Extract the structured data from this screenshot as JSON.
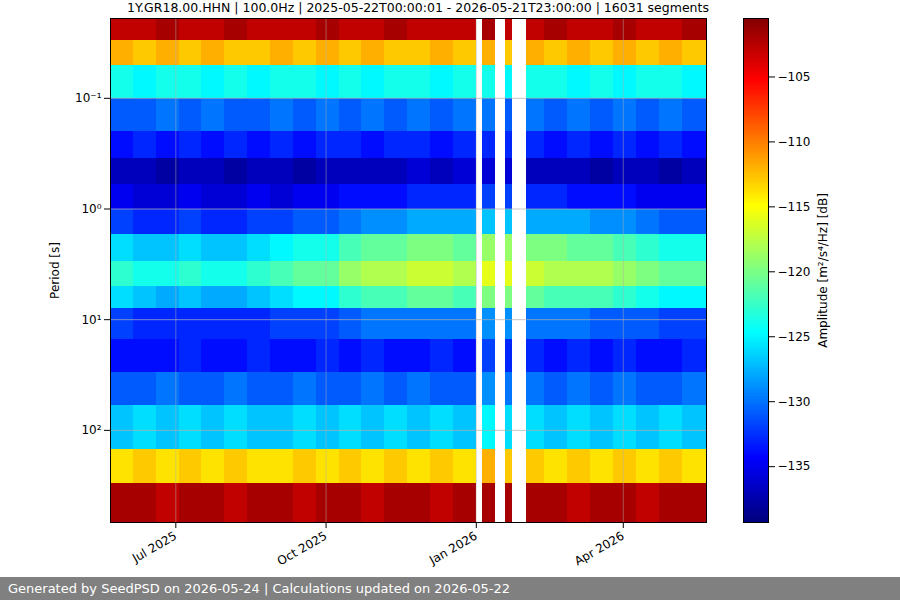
{
  "chart_data": {
    "type": "heatmap",
    "title": "1Y.GR18.00.HHN | 100.0Hz | 2025-05-22T00:00:01 - 2026-05-21T23:00:00 | 16031 segments",
    "footer": "Generated by SeedPSD on 2026-05-24 | Calculations updated on 2026-05-22",
    "y_label": "Period [s]",
    "colorbar_label": "Amplitude [m²/s⁴/Hz] [dB]",
    "xlim": [
      "2025-05-22T00:00:01",
      "2026-05-21T23:00:00"
    ],
    "xticks": [
      {
        "value": "2025-07-01",
        "label": "Jul 2025"
      },
      {
        "value": "2025-10-01",
        "label": "Oct 2025"
      },
      {
        "value": "2026-01-01",
        "label": "Jan 2026"
      },
      {
        "value": "2026-04-01",
        "label": "Apr 2026"
      }
    ],
    "ylim": [
      0.019,
      680
    ],
    "yticks": [
      {
        "value": 0.1,
        "label": "10⁻¹"
      },
      {
        "value": 1,
        "label": "10⁰"
      },
      {
        "value": 10,
        "label": "10¹"
      },
      {
        "value": 100,
        "label": "10²"
      }
    ],
    "log": "y",
    "grid": true,
    "time_edges": [
      "2025-05-22T00:00:01",
      "2025-06-05",
      "2025-06-19",
      "2025-07-03",
      "2025-07-17",
      "2025-07-31",
      "2025-08-14",
      "2025-08-28",
      "2025-09-11",
      "2025-09-25",
      "2025-10-09",
      "2025-10-23",
      "2025-11-06",
      "2025-11-20",
      "2025-12-04",
      "2025-12-18",
      "2026-01-01",
      "2026-01-05",
      "2026-01-13",
      "2026-01-19",
      "2026-01-23",
      "2026-02-01",
      "2026-02-12",
      "2026-02-26",
      "2026-03-12",
      "2026-03-26",
      "2026-04-09",
      "2026-04-23",
      "2026-05-07",
      "2026-05-21T23:00:00"
    ],
    "period_edges": [
      0.019,
      0.03,
      0.05,
      0.1,
      0.2,
      0.35,
      0.6,
      1,
      1.7,
      3,
      5,
      8,
      15,
      30,
      60,
      150,
      300,
      680
    ],
    "values": [
      [
        -103,
        -103,
        -102,
        -103,
        -103,
        -102,
        -103,
        -103,
        -103,
        -102,
        -103,
        -103,
        -102,
        -103,
        -103,
        -103,
        null,
        -102,
        null,
        -103,
        null,
        -103,
        -102,
        -103,
        -103,
        -102,
        -103,
        -103,
        -102
      ],
      [
        -112,
        -113,
        -112,
        -113,
        -112,
        -113,
        -113,
        -112,
        -113,
        -112,
        -113,
        -112,
        -113,
        -113,
        -112,
        -113,
        null,
        -112,
        null,
        -113,
        null,
        -112,
        -113,
        -112,
        -113,
        -112,
        -113,
        -112,
        -113
      ],
      [
        -124,
        -125,
        -124,
        -124,
        -125,
        -124,
        -125,
        -124,
        -124,
        -125,
        -124,
        -125,
        -124,
        -124,
        -125,
        -124,
        null,
        -124,
        null,
        -125,
        null,
        -124,
        -124,
        -125,
        -124,
        -125,
        -124,
        -124,
        -125
      ],
      [
        -131,
        -131,
        -130,
        -131,
        -130,
        -131,
        -131,
        -130,
        -131,
        -130,
        -131,
        -130,
        -131,
        -130,
        -131,
        -130,
        null,
        -130,
        null,
        -131,
        null,
        -130,
        -131,
        -130,
        -131,
        -130,
        -131,
        -130,
        -131
      ],
      [
        -134,
        -133,
        -134,
        -133,
        -134,
        -133,
        -134,
        -133,
        -134,
        -133,
        -133,
        -134,
        -133,
        -133,
        -134,
        -133,
        null,
        -133,
        null,
        -133,
        null,
        -133,
        -134,
        -133,
        -134,
        -133,
        -134,
        -133,
        -134
      ],
      [
        -137,
        -137,
        -138,
        -137,
        -137,
        -138,
        -137,
        -137,
        -138,
        -137,
        -137,
        -137,
        -137,
        -136,
        -137,
        -136,
        null,
        -136,
        null,
        -136,
        null,
        -137,
        -137,
        -137,
        -138,
        -137,
        -137,
        -138,
        -137
      ],
      [
        -135,
        -136,
        -136,
        -135,
        -136,
        -136,
        -135,
        -136,
        -135,
        -135,
        -134,
        -134,
        -134,
        -133,
        -133,
        -133,
        null,
        -132,
        null,
        -132,
        null,
        -133,
        -133,
        -134,
        -134,
        -134,
        -135,
        -135,
        -135
      ],
      [
        -132,
        -133,
        -133,
        -132,
        -133,
        -133,
        -132,
        -132,
        -131,
        -131,
        -130,
        -129,
        -129,
        -128,
        -128,
        -128,
        null,
        -127,
        null,
        -127,
        null,
        -128,
        -128,
        -128,
        -129,
        -129,
        -130,
        -131,
        -131
      ],
      [
        -126,
        -127,
        -127,
        -126,
        -127,
        -127,
        -126,
        -125,
        -124,
        -124,
        -122,
        -121,
        -121,
        -120,
        -120,
        -121,
        null,
        -119,
        null,
        -119,
        null,
        -120,
        -120,
        -121,
        -121,
        -122,
        -123,
        -124,
        -124
      ],
      [
        -123,
        -124,
        -124,
        -123,
        -124,
        -124,
        -123,
        -122,
        -121,
        -121,
        -119,
        -118,
        -118,
        -117,
        -117,
        -118,
        null,
        -116,
        null,
        -116,
        null,
        -117,
        -118,
        -118,
        -118,
        -119,
        -120,
        -121,
        -121
      ],
      [
        -126,
        -127,
        -128,
        -127,
        -128,
        -128,
        -127,
        -126,
        -125,
        -125,
        -123,
        -122,
        -122,
        -121,
        -121,
        -122,
        null,
        -120,
        null,
        -120,
        null,
        -121,
        -122,
        -122,
        -122,
        -123,
        -124,
        -125,
        -125
      ],
      [
        -132,
        -133,
        -133,
        -133,
        -133,
        -133,
        -133,
        -132,
        -132,
        -132,
        -131,
        -130,
        -130,
        -130,
        -130,
        -130,
        null,
        -129,
        null,
        -129,
        null,
        -130,
        -130,
        -130,
        -131,
        -131,
        -131,
        -132,
        -132
      ],
      [
        -134,
        -134,
        -134,
        -133,
        -134,
        -134,
        -133,
        -134,
        -134,
        -133,
        -134,
        -133,
        -134,
        -134,
        -133,
        -134,
        null,
        -132,
        null,
        -133,
        null,
        -133,
        -134,
        -133,
        -134,
        -133,
        -134,
        -134,
        -133
      ],
      [
        -131,
        -131,
        -130,
        -131,
        -131,
        -130,
        -131,
        -131,
        -130,
        -131,
        -131,
        -130,
        -131,
        -130,
        -131,
        -131,
        null,
        -129,
        null,
        -130,
        null,
        -130,
        -131,
        -130,
        -131,
        -130,
        -131,
        -131,
        -130
      ],
      [
        -127,
        -126,
        -127,
        -126,
        -127,
        -126,
        -127,
        -127,
        -126,
        -127,
        -126,
        -127,
        -126,
        -127,
        -126,
        -127,
        null,
        -125,
        null,
        -126,
        null,
        -126,
        -127,
        -126,
        -127,
        -126,
        -127,
        -126,
        -127
      ],
      [
        -114,
        -113,
        -114,
        -113,
        -114,
        -113,
        -114,
        -114,
        -113,
        -114,
        -113,
        -114,
        -113,
        -114,
        -113,
        -114,
        null,
        -112,
        null,
        -113,
        null,
        -113,
        -114,
        -113,
        -114,
        -113,
        -114,
        -113,
        -114
      ],
      [
        -102,
        -102,
        -103,
        -102,
        -102,
        -103,
        -102,
        -102,
        -103,
        -102,
        -102,
        -103,
        -102,
        -102,
        -103,
        -102,
        null,
        -102,
        null,
        -102,
        null,
        -102,
        -102,
        -103,
        -102,
        -102,
        -103,
        -102,
        -102
      ]
    ],
    "clim": [
      -139.3,
      -100.5
    ],
    "cticks": [
      -135,
      -130,
      -125,
      -120,
      -115,
      -110,
      -105
    ]
  }
}
